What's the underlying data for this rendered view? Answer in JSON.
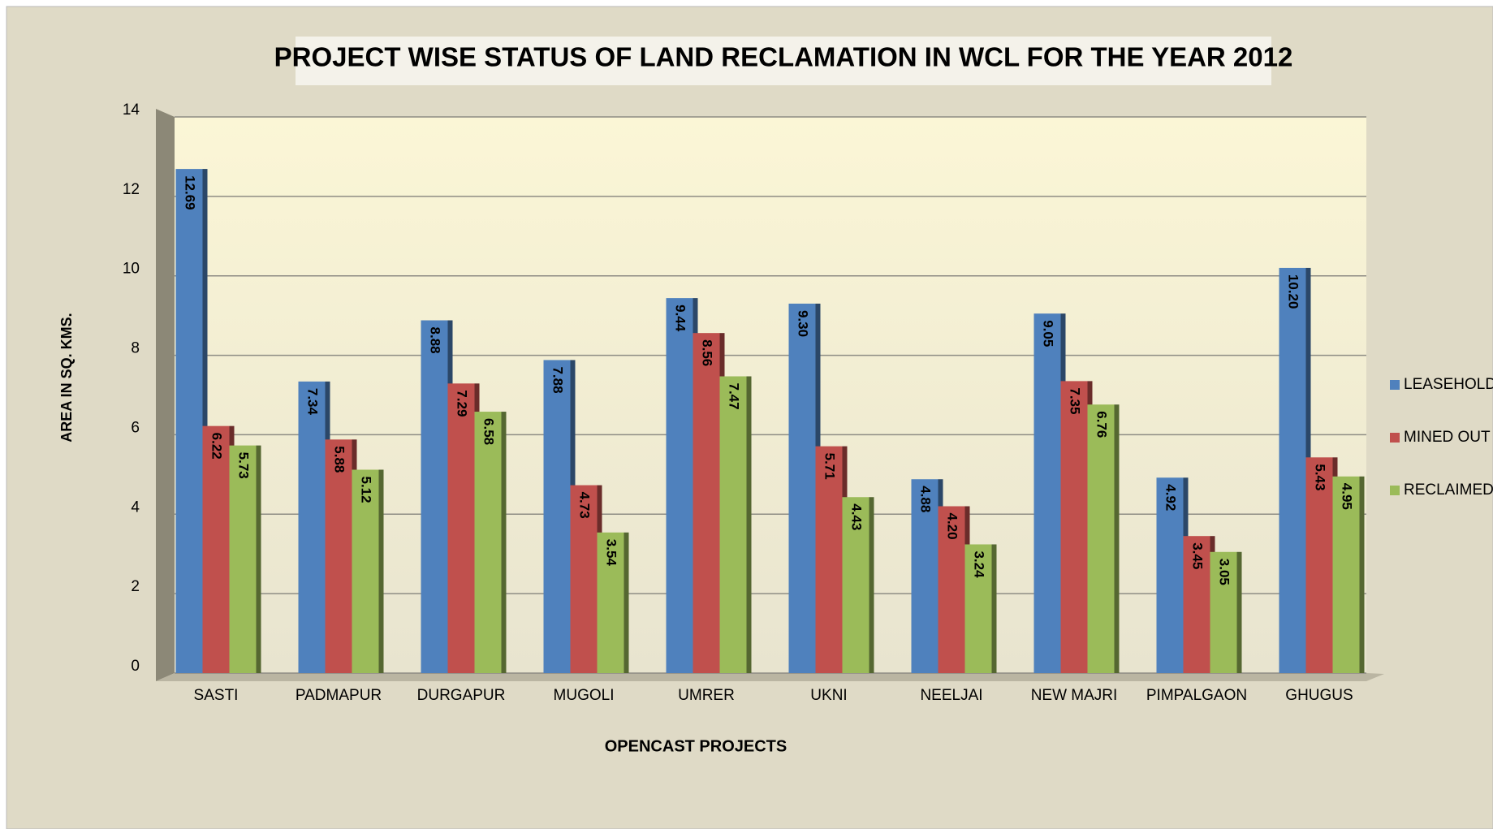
{
  "chart_data": {
    "type": "bar",
    "title": "PROJECT WISE STATUS OF LAND RECLAMATION IN WCL FOR THE YEAR 2012",
    "y_label": "AREA IN SQ. KMS.",
    "x_label": "OPENCAST PROJECTS",
    "categories": [
      "SASTI",
      "PADMAPUR",
      "DURGAPUR",
      "MUGOLI",
      "UMRER",
      "UKNI",
      "NEELJAI",
      "NEW MAJRI",
      "PIMPALGAON",
      "GHUGUS"
    ],
    "series": [
      {
        "name": "LEASEHOLD",
        "color": "#4f81bd",
        "values": [
          12.69,
          7.34,
          8.88,
          7.88,
          9.44,
          9.3,
          4.88,
          9.05,
          4.92,
          10.2
        ],
        "value_labels": [
          "12.69",
          "7.34",
          "8.88",
          "7.88",
          "9.44",
          "9.30",
          "4.88",
          "9.05",
          "4.92",
          "10.20"
        ]
      },
      {
        "name": "MINED OUT",
        "color": "#c0504d",
        "values": [
          6.22,
          5.88,
          7.29,
          4.73,
          8.56,
          5.71,
          4.2,
          7.35,
          3.45,
          5.43
        ],
        "value_labels": [
          "6.22",
          "5.88",
          "7.29",
          "4.73",
          "8.56",
          "5.71",
          "4.20",
          "7.35",
          "3.45",
          "5.43"
        ]
      },
      {
        "name": "RECLAIMED",
        "color": "#9bbb59",
        "values": [
          5.73,
          5.12,
          6.58,
          3.54,
          7.47,
          4.43,
          3.24,
          6.76,
          3.05,
          4.95
        ],
        "value_labels": [
          "5.73",
          "5.12",
          "6.58",
          "3.54",
          "7.47",
          "4.43",
          "3.24",
          "6.76",
          "3.05",
          "4.95"
        ]
      }
    ],
    "ylim": [
      0,
      14
    ],
    "yticks": [
      0,
      2,
      4,
      6,
      8,
      10,
      12,
      14
    ],
    "grid": true,
    "legend": "right"
  }
}
